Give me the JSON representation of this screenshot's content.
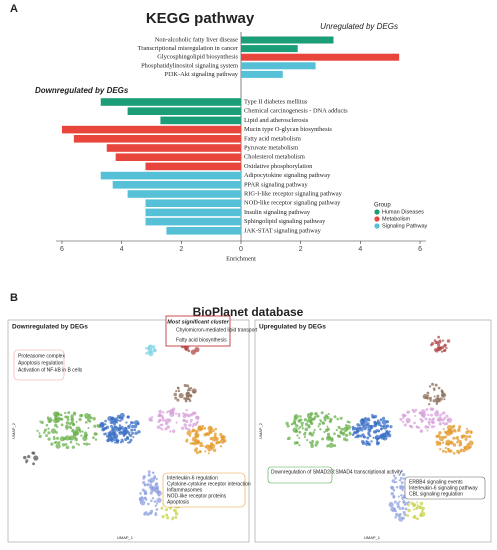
{
  "panel_labels": [
    "A",
    "B"
  ],
  "chart_data": {
    "type": "bar",
    "orientation": "horizontal",
    "title": "KEGG pathway",
    "annotations": [
      "Unregulated by DEGs",
      "Downregulated by DEGs"
    ],
    "xlabel": "Enrichment",
    "categories": [
      "Non-alcoholic fatty liver disease",
      "Transcriptional misregulation in cancer",
      "Glycosphingolipid biosynthesis",
      "Phosphatidylinositol signaling system",
      "PI3K-Akt signaling pathway",
      "Type II diabetes mellitus",
      "Chemical carcinogenesis - DNA adducts",
      "Lipid and atherosclerosis",
      "Mucin type O-glycan biosynthesis",
      "Fatty acid metabolism",
      "Pyruvate metabolism",
      "Cholesterol metabolism",
      "Oxidative phosphorylation",
      "Adipocytokine signaling pathway",
      "PPAR signaling pathway",
      "RIG-I-like receptor signaling pathway",
      "NOD-like receptor signaling pathway",
      "Insulin signaling pathway",
      "Sphingolipid signaling pathway",
      "JAK-STAT signaling pathway"
    ],
    "values": [
      3.1,
      1.9,
      5.3,
      2.5,
      1.4,
      -4.7,
      -3.8,
      -2.7,
      -6.0,
      -5.6,
      -4.5,
      -4.2,
      -3.2,
      -4.7,
      -4.3,
      -3.8,
      -3.2,
      -3.2,
      -3.2,
      -2.5
    ],
    "colors": [
      "#1b9e77",
      "#1b9e77",
      "#e8453c",
      "#56c1d6",
      "#56c1d6",
      "#1b9e77",
      "#1b9e77",
      "#1b9e77",
      "#e8453c",
      "#e8453c",
      "#e8453c",
      "#e8453c",
      "#e8453c",
      "#56c1d6",
      "#56c1d6",
      "#56c1d6",
      "#56c1d6",
      "#56c1d6",
      "#56c1d6",
      "#56c1d6"
    ],
    "xlim": [
      -6.2,
      6.2
    ],
    "xticks": [
      {
        "value": -6,
        "label": "6"
      },
      {
        "value": -4,
        "label": "4"
      },
      {
        "value": -2,
        "label": "2"
      },
      0,
      2,
      4,
      6
    ],
    "legend": {
      "title": "Group",
      "position": "right",
      "items": [
        {
          "name": "Human Diseases",
          "color": "#1b9e77"
        },
        {
          "name": "Metabolism",
          "color": "#e8453c"
        },
        {
          "name": "Signaling Pathway",
          "color": "#56c1d6"
        }
      ]
    }
  },
  "bioplanet": {
    "title": "BioPlanet database",
    "xlabel": "UMAP_1",
    "ylabel": "UMAP_2",
    "left": {
      "title": "Downregulated by DEGs",
      "top_box": {
        "title": "Most significant cluster",
        "items": [
          "Chylomicron-mediated lipid transport",
          "Fatty acid biosynthesis"
        ]
      },
      "pink_box": [
        "Proteasome complex",
        "Apoptosis regulation",
        "Activation of NF-kB in B cells"
      ],
      "orange_box": [
        "Interleukin-6 regulation",
        "Cytokine-cytokine receptor interaction",
        "Inflammasomes",
        "NOD-like receptor proteins",
        "Apoptosis"
      ]
    },
    "right": {
      "title": "Upregulated by DEGs",
      "green_box": [
        "Downregulation of SMAD2/3:SMAD4 transcriptional activity"
      ],
      "gray_box": [
        "ERBB4 signaling events",
        "Interleukin-6 signaling pathway",
        "CBL signaling regulation"
      ]
    }
  }
}
